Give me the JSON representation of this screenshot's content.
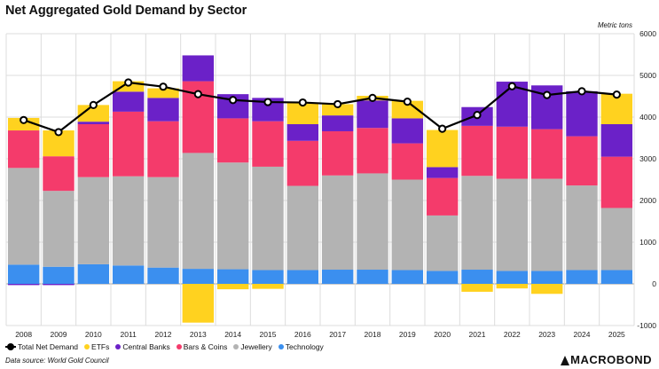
{
  "title": "Net Aggregated Gold Demand by Sector",
  "source": "Data source: World Gold Council",
  "brand": "MACROBOND",
  "colors": {
    "Technology": "#3b8fef",
    "Jewellery": "#b3b3b3",
    "Bars & Coins": "#f43b6b",
    "Central Banks": "#6b21c8",
    "ETFs": "#ffd21f",
    "Total Net Demand": "#000000",
    "grid": "#dcdcdc"
  },
  "legend": [
    {
      "label": "Total Net Demand",
      "kind": "line"
    },
    {
      "label": "ETFs",
      "kind": "swatch"
    },
    {
      "label": "Central Banks",
      "kind": "swatch"
    },
    {
      "label": "Bars & Coins",
      "kind": "swatch"
    },
    {
      "label": "Jewellery",
      "kind": "swatch"
    },
    {
      "label": "Technology",
      "kind": "swatch"
    }
  ],
  "chart_data": {
    "type": "bar",
    "stacked": true,
    "title": "Net Aggregated Gold Demand by Sector",
    "ylabel": "Metric tons",
    "ylim": [
      -1000,
      6000
    ],
    "yticks": [
      -1000,
      0,
      1000,
      2000,
      3000,
      4000,
      5000,
      6000
    ],
    "y_axis_position": "right",
    "grid": true,
    "legend_position": "bottom-left",
    "categories": [
      "2008",
      "2009",
      "2010",
      "2011",
      "2012",
      "2013",
      "2014",
      "2015",
      "2016",
      "2017",
      "2018",
      "2019",
      "2020",
      "2021",
      "2022",
      "2023",
      "2024",
      "2025"
    ],
    "series": [
      {
        "name": "Technology",
        "values": [
          460,
          410,
          470,
          440,
          390,
          360,
          350,
          330,
          330,
          340,
          340,
          330,
          310,
          340,
          310,
          310,
          330,
          330
        ]
      },
      {
        "name": "Jewellery",
        "values": [
          2320,
          1820,
          2090,
          2140,
          2170,
          2780,
          2560,
          2480,
          2020,
          2260,
          2310,
          2170,
          1330,
          2250,
          2210,
          2210,
          2030,
          1490
        ]
      },
      {
        "name": "Bars & Coins",
        "values": [
          900,
          830,
          1270,
          1550,
          1340,
          1720,
          1060,
          1090,
          1080,
          1060,
          1090,
          870,
          900,
          1200,
          1250,
          1190,
          1180,
          1230
        ]
      },
      {
        "name": "Central Banks",
        "values": [
          -30,
          -30,
          60,
          480,
          560,
          620,
          580,
          560,
          400,
          380,
          660,
          600,
          260,
          450,
          1080,
          1050,
          1080,
          780
        ]
      },
      {
        "name": "ETFs",
        "values": [
          300,
          620,
          400,
          250,
          230,
          -930,
          -130,
          -120,
          520,
          270,
          110,
          420,
          890,
          -190,
          -110,
          -240,
          0,
          730
        ]
      }
    ],
    "line": {
      "name": "Total Net Demand",
      "values": [
        3930,
        3640,
        4290,
        4830,
        4730,
        4550,
        4410,
        4360,
        4350,
        4310,
        4460,
        4370,
        3720,
        4050,
        4740,
        4530,
        4620,
        4540
      ]
    }
  }
}
